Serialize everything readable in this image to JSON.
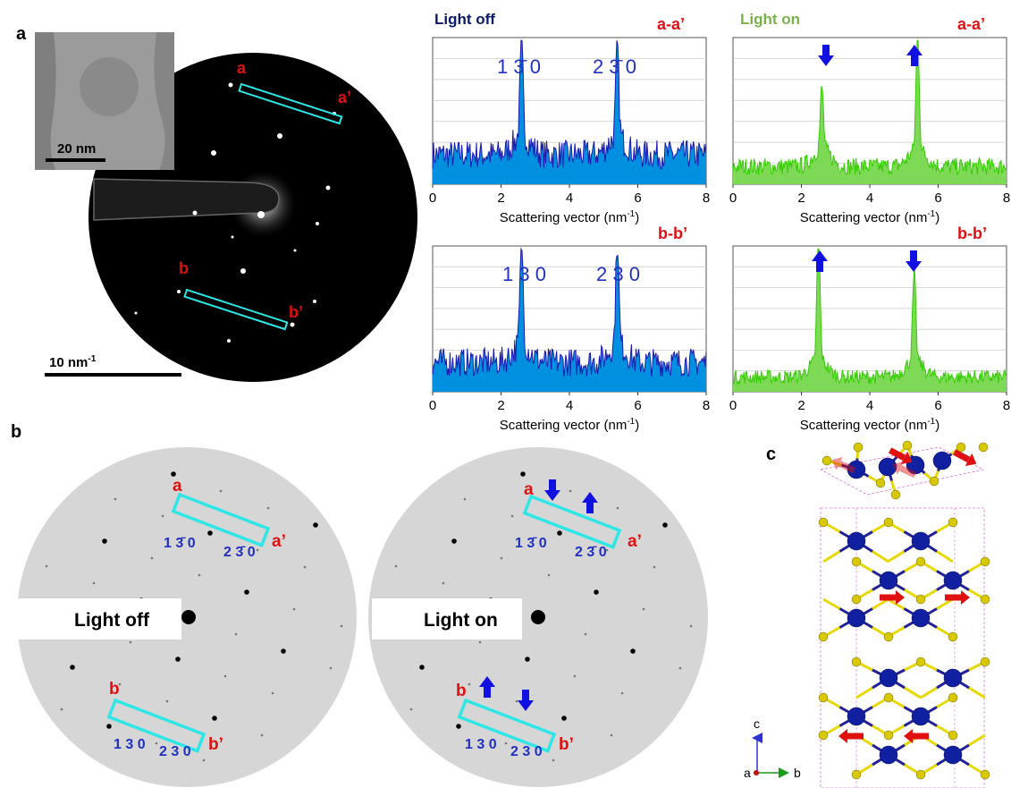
{
  "panel_labels": {
    "a": "a",
    "b": "b",
    "c": "c"
  },
  "panel_a": {
    "inset_scale": "20 nm",
    "saed_scale_base": "10 nm",
    "saed_scale_exp": "-1",
    "rect_labels": {
      "a": "a",
      "a_prime": "a’",
      "b": "b",
      "b_prime": "b’"
    }
  },
  "profiles": {
    "light_off_title": "Light off",
    "light_on_title": "Light on",
    "label_aa": "a-a’",
    "label_bb": "b-b’",
    "xlabel_base": "Scattering vector (nm",
    "xlabel_exp": "-1",
    "xlabel_close": ")",
    "x_ticks": [
      "0",
      "2",
      "4",
      "6",
      "8"
    ],
    "peaks_top": {
      "p1_a": "1 ",
      "p1_bar": "3̄",
      "p1_b": " 0",
      "p2_a": "2 ",
      "p2_bar": "3̄",
      "p2_b": " 0"
    },
    "peaks_bottom": {
      "p1": "1 3 0",
      "p2": "2 3 0"
    }
  },
  "panel_b": {
    "left_title": "Light off",
    "right_title": "Light on",
    "labels": {
      "a": "a",
      "a_prime": "a’",
      "b": "b",
      "b_prime": "b’"
    },
    "idx_top_1_a": "1 ",
    "idx_top_1_bar": "3̄",
    "idx_top_1_b": " 0",
    "idx_top_2_a": "2 ",
    "idx_top_2_bar": "3̄",
    "idx_top_2_b": " 0",
    "idx_bot_1": "1 3 0",
    "idx_bot_2": "2 3 0"
  },
  "panel_c": {
    "axis_c": "c",
    "axis_a": "a",
    "axis_b": "b"
  },
  "chart_data": [
    {
      "type": "area",
      "name": "light-off-aa",
      "x_range": [
        0,
        8
      ],
      "peaks": [
        {
          "x": 2.6,
          "height": 0.65
        },
        {
          "x": 5.4,
          "height": 0.62
        }
      ],
      "noise_level": 0.3,
      "color": "#1a1ab0",
      "fill": "#0090e0"
    },
    {
      "type": "area",
      "name": "light-on-aa",
      "x_range": [
        0,
        8
      ],
      "peaks": [
        {
          "x": 2.6,
          "height": 0.42
        },
        {
          "x": 5.4,
          "height": 0.82
        }
      ],
      "noise_level": 0.18,
      "color": "#33cc00",
      "fill": "#7ed957"
    },
    {
      "type": "area",
      "name": "light-off-bb",
      "x_range": [
        0,
        8
      ],
      "peaks": [
        {
          "x": 2.6,
          "height": 0.72
        },
        {
          "x": 5.4,
          "height": 0.72
        }
      ],
      "noise_level": 0.3,
      "color": "#1a1ab0",
      "fill": "#0090e0"
    },
    {
      "type": "area",
      "name": "light-on-bb",
      "x_range": [
        0,
        8
      ],
      "peaks": [
        {
          "x": 2.5,
          "height": 0.88
        },
        {
          "x": 5.3,
          "height": 0.6
        }
      ],
      "noise_level": 0.15,
      "color": "#33cc00",
      "fill": "#7ed957"
    }
  ]
}
